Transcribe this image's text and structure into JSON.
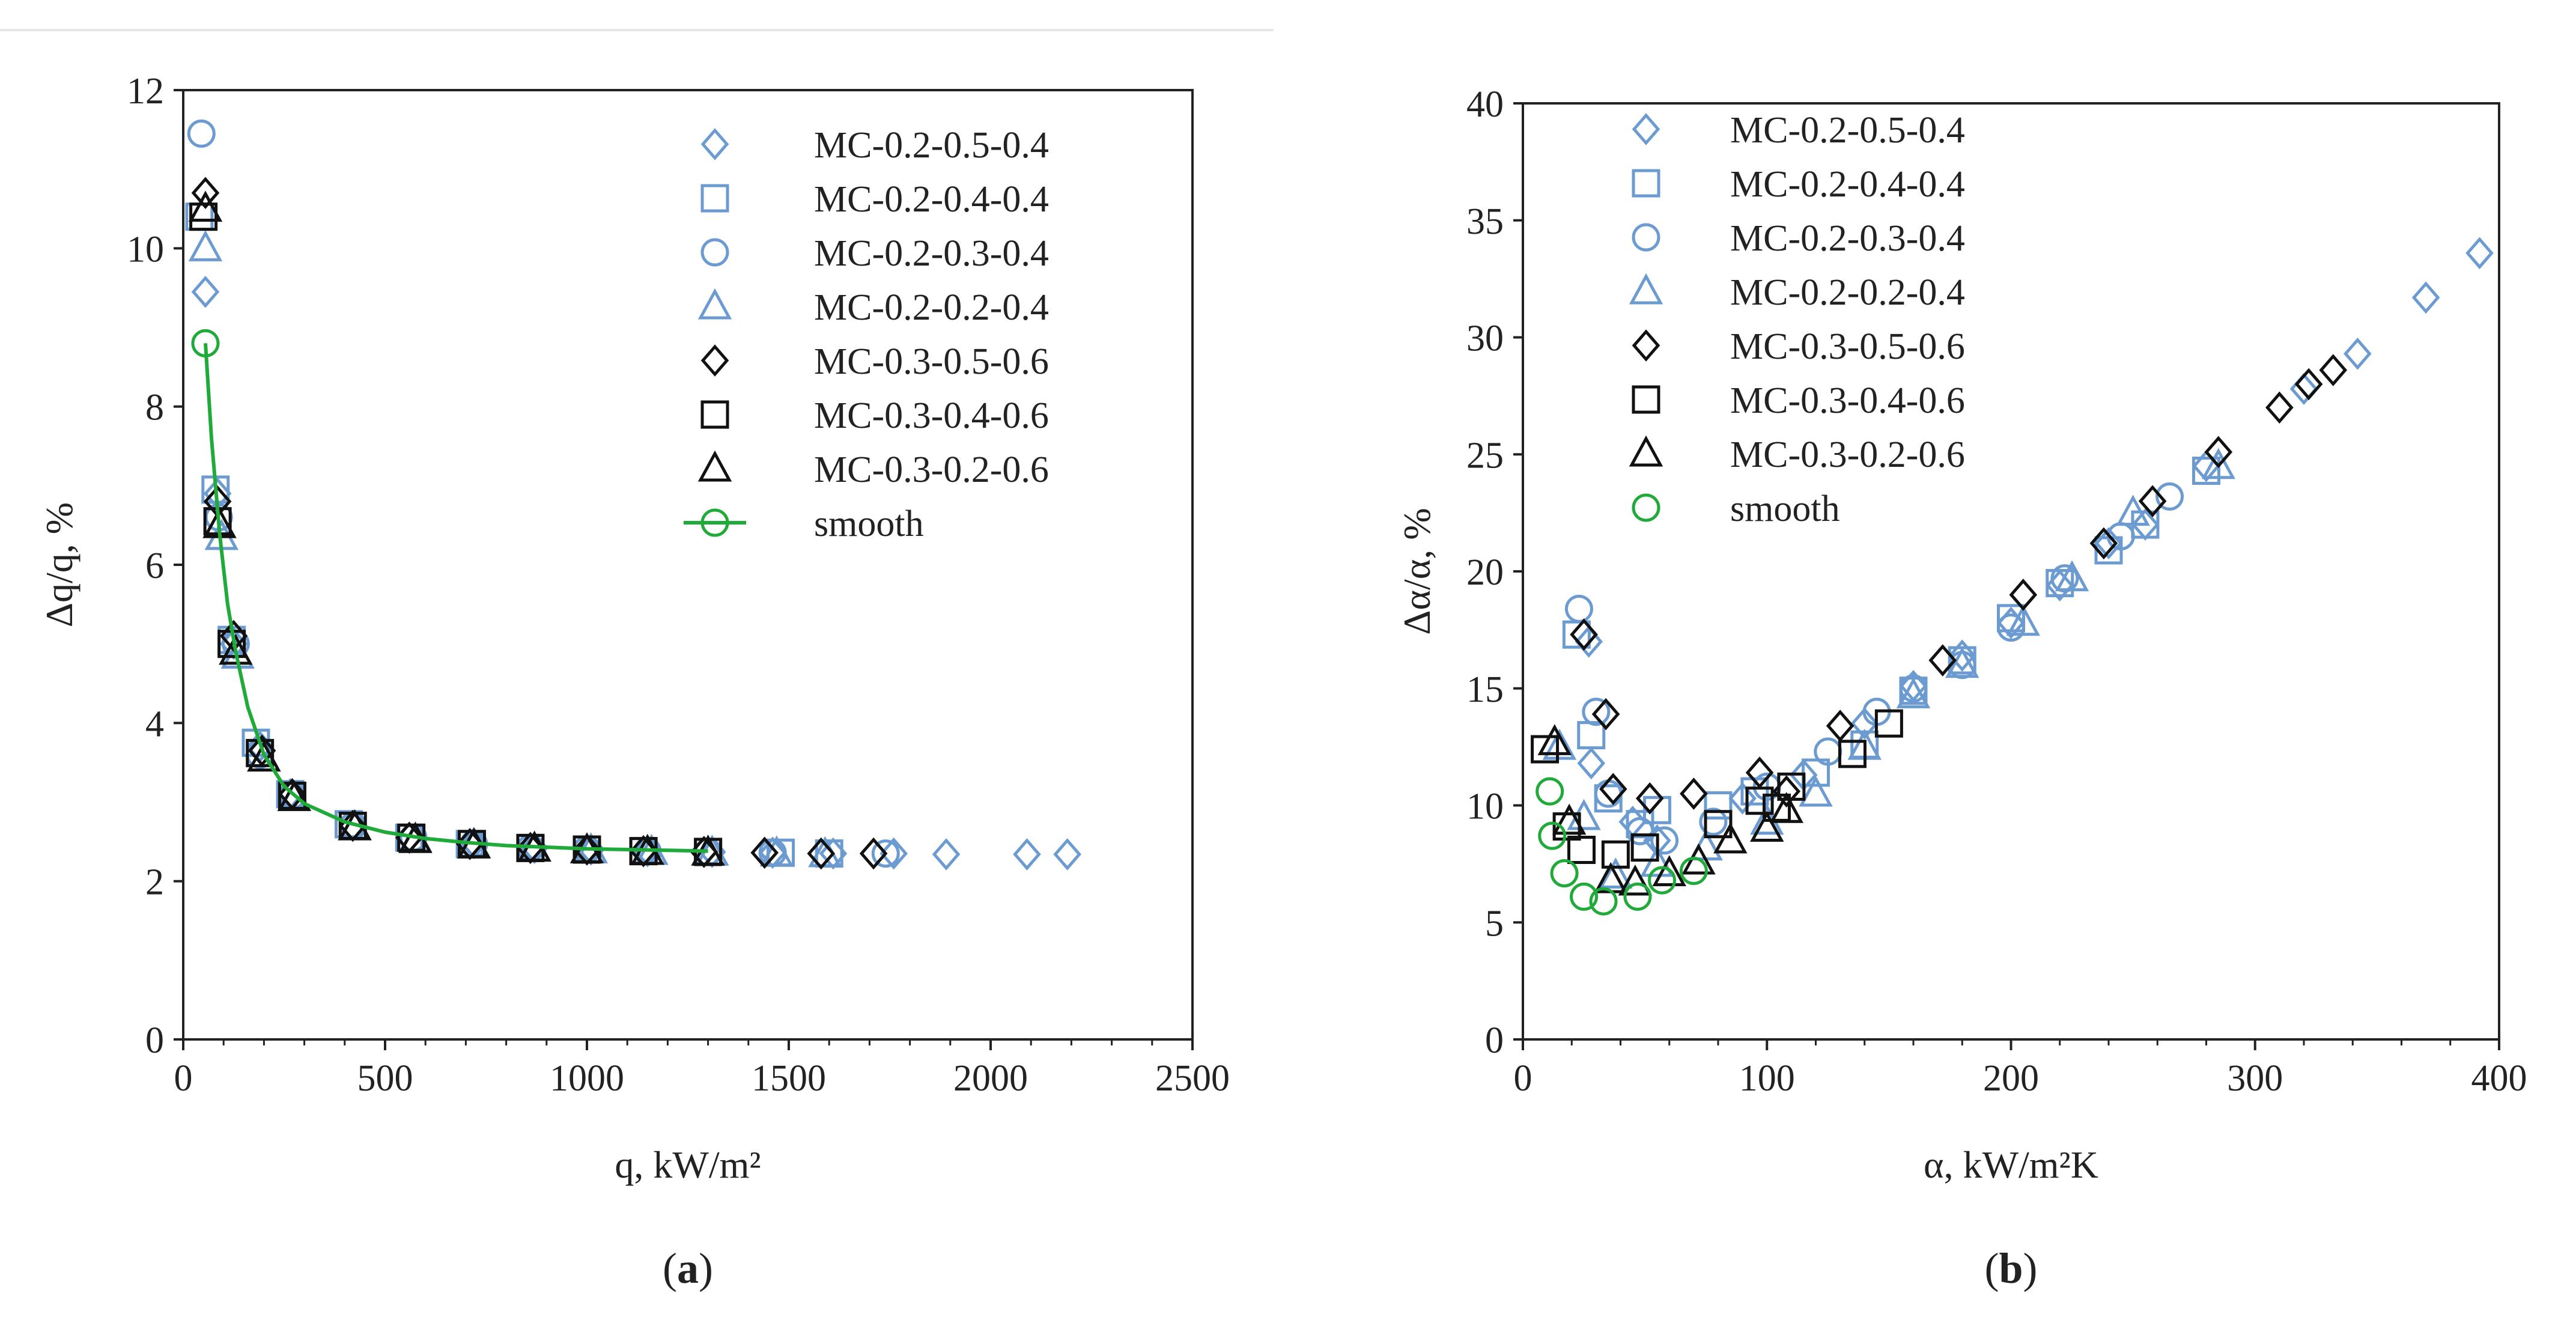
{
  "colors": {
    "blue": "#6b9bd1",
    "black": "#111111",
    "green": "#1faa3a",
    "axis": "#222222"
  },
  "chart_data": [
    {
      "id": "a",
      "type": "scatter",
      "caption": "(a)",
      "caption_letter": "a",
      "xlabel": "q, kW/m²",
      "ylabel": "Δq/q, %",
      "xlim": [
        0,
        2500
      ],
      "ylim": [
        0,
        12
      ],
      "xticks": [
        0,
        500,
        1000,
        1500,
        2000,
        2500
      ],
      "yticks": [
        0,
        2,
        4,
        6,
        8,
        10,
        12
      ],
      "legend_position": "top-right",
      "series": [
        {
          "name": "MC-0.2-0.5-0.4",
          "marker": "diamond",
          "color": "blue",
          "points": [
            [
              55,
              9.45
            ],
            [
              85,
              6.9
            ],
            [
              125,
              5.0
            ],
            [
              190,
              3.7
            ],
            [
              265,
              3.1
            ],
            [
              420,
              2.7
            ],
            [
              560,
              2.55
            ],
            [
              720,
              2.48
            ],
            [
              870,
              2.42
            ],
            [
              1010,
              2.4
            ],
            [
              1150,
              2.38
            ],
            [
              1310,
              2.37
            ],
            [
              1460,
              2.36
            ],
            [
              1610,
              2.35
            ],
            [
              1760,
              2.35
            ],
            [
              1890,
              2.34
            ],
            [
              2090,
              2.34
            ],
            [
              2190,
              2.34
            ]
          ]
        },
        {
          "name": "MC-0.2-0.4-0.4",
          "marker": "square",
          "color": "blue",
          "points": [
            [
              40,
              10.4
            ],
            [
              80,
              6.95
            ],
            [
              120,
              5.05
            ],
            [
              180,
              3.75
            ],
            [
              265,
              3.1
            ],
            [
              410,
              2.72
            ],
            [
              560,
              2.55
            ],
            [
              710,
              2.47
            ],
            [
              860,
              2.42
            ],
            [
              1000,
              2.4
            ],
            [
              1140,
              2.38
            ],
            [
              1300,
              2.37
            ],
            [
              1480,
              2.36
            ],
            [
              1600,
              2.35
            ]
          ]
        },
        {
          "name": "MC-0.2-0.3-0.4",
          "marker": "circle",
          "color": "blue",
          "points": [
            [
              45,
              11.45
            ],
            [
              88,
              6.6
            ],
            [
              130,
              5.0
            ],
            [
              190,
              3.6
            ],
            [
              270,
              3.08
            ],
            [
              420,
              2.7
            ],
            [
              570,
              2.55
            ],
            [
              720,
              2.47
            ],
            [
              860,
              2.42
            ],
            [
              1000,
              2.4
            ],
            [
              1150,
              2.38
            ],
            [
              1300,
              2.37
            ],
            [
              1460,
              2.36
            ],
            [
              1740,
              2.35
            ]
          ]
        },
        {
          "name": "MC-0.2-0.2-0.4",
          "marker": "triangle",
          "color": "blue",
          "points": [
            [
              55,
              10.0
            ],
            [
              95,
              6.35
            ],
            [
              135,
              4.85
            ],
            [
              200,
              3.55
            ],
            [
              275,
              3.05
            ],
            [
              425,
              2.68
            ],
            [
              575,
              2.53
            ],
            [
              720,
              2.46
            ],
            [
              870,
              2.41
            ],
            [
              1010,
              2.39
            ],
            [
              1160,
              2.37
            ],
            [
              1310,
              2.36
            ],
            [
              1470,
              2.35
            ],
            [
              1590,
              2.34
            ]
          ]
        },
        {
          "name": "MC-0.3-0.5-0.6",
          "marker": "diamond",
          "color": "black",
          "points": [
            [
              55,
              10.7
            ],
            [
              85,
              6.8
            ],
            [
              125,
              5.1
            ],
            [
              195,
              3.65
            ],
            [
              270,
              3.1
            ],
            [
              420,
              2.7
            ],
            [
              560,
              2.55
            ],
            [
              710,
              2.47
            ],
            [
              860,
              2.42
            ],
            [
              1000,
              2.4
            ],
            [
              1140,
              2.38
            ],
            [
              1290,
              2.37
            ],
            [
              1440,
              2.36
            ],
            [
              1580,
              2.35
            ],
            [
              1710,
              2.35
            ]
          ]
        },
        {
          "name": "MC-0.3-0.4-0.6",
          "marker": "square",
          "color": "black",
          "points": [
            [
              50,
              10.4
            ],
            [
              85,
              6.55
            ],
            [
              120,
              5.0
            ],
            [
              190,
              3.62
            ],
            [
              270,
              3.08
            ],
            [
              420,
              2.7
            ],
            [
              565,
              2.55
            ],
            [
              715,
              2.47
            ],
            [
              860,
              2.42
            ],
            [
              1000,
              2.4
            ],
            [
              1140,
              2.38
            ],
            [
              1300,
              2.37
            ]
          ]
        },
        {
          "name": "MC-0.3-0.2-0.6",
          "marker": "triangle",
          "color": "black",
          "points": [
            [
              55,
              10.5
            ],
            [
              90,
              6.5
            ],
            [
              130,
              4.9
            ],
            [
              200,
              3.55
            ],
            [
              275,
              3.05
            ],
            [
              425,
              2.68
            ],
            [
              575,
              2.52
            ],
            [
              720,
              2.45
            ],
            [
              870,
              2.41
            ],
            [
              1000,
              2.39
            ],
            [
              1150,
              2.37
            ],
            [
              1300,
              2.36
            ]
          ]
        },
        {
          "name": "smooth",
          "marker": "circle",
          "color": "green",
          "line": true,
          "points": [
            [
              55,
              8.8
            ],
            [
              70,
              7.6
            ],
            [
              90,
              6.4
            ],
            [
              110,
              5.5
            ],
            [
              130,
              4.9
            ],
            [
              160,
              4.2
            ],
            [
              200,
              3.6
            ],
            [
              250,
              3.2
            ],
            [
              300,
              2.98
            ],
            [
              400,
              2.75
            ],
            [
              500,
              2.62
            ],
            [
              600,
              2.54
            ],
            [
              700,
              2.49
            ],
            [
              800,
              2.45
            ],
            [
              900,
              2.43
            ],
            [
              1000,
              2.41
            ],
            [
              1100,
              2.4
            ],
            [
              1200,
              2.39
            ],
            [
              1300,
              2.38
            ]
          ],
          "marker_points": [
            [
              55,
              8.8
            ]
          ]
        }
      ]
    },
    {
      "id": "b",
      "type": "scatter",
      "caption": "(b)",
      "caption_letter": "b",
      "xlabel": "α, kW/m²K",
      "ylabel": "Δα/α, %",
      "xlim": [
        0,
        400
      ],
      "ylim": [
        0,
        40
      ],
      "xticks": [
        0,
        100,
        200,
        300,
        400
      ],
      "yticks": [
        0,
        5,
        10,
        15,
        20,
        25,
        30,
        35,
        40
      ],
      "legend_position": "top-left",
      "series": [
        {
          "name": "MC-0.2-0.5-0.4",
          "marker": "diamond",
          "color": "blue",
          "points": [
            [
              27,
              17.0
            ],
            [
              28,
              11.8
            ],
            [
              45,
              9.3
            ],
            [
              55,
              8.5
            ],
            [
              90,
              10.3
            ],
            [
              115,
              11.3
            ],
            [
              140,
              13.5
            ],
            [
              160,
              15.1
            ],
            [
              180,
              16.4
            ],
            [
              200,
              17.8
            ],
            [
              220,
              19.4
            ],
            [
              240,
              21.2
            ],
            [
              255,
              22.0
            ],
            [
              280,
              24.5
            ],
            [
              320,
              27.8
            ],
            [
              342,
              29.3
            ],
            [
              370,
              31.7
            ],
            [
              392,
              33.6
            ]
          ]
        },
        {
          "name": "MC-0.2-0.4-0.4",
          "marker": "square",
          "color": "blue",
          "points": [
            [
              22,
              17.3
            ],
            [
              28,
              13.0
            ],
            [
              35,
              10.3
            ],
            [
              48,
              9.2
            ],
            [
              55,
              9.8
            ],
            [
              80,
              10.0
            ],
            [
              95,
              10.6
            ],
            [
              120,
              11.4
            ],
            [
              140,
              12.6
            ],
            [
              160,
              14.9
            ],
            [
              180,
              16.2
            ],
            [
              200,
              18.0
            ],
            [
              220,
              19.5
            ],
            [
              240,
              20.9
            ],
            [
              255,
              22.0
            ],
            [
              280,
              24.3
            ]
          ]
        },
        {
          "name": "MC-0.2-0.3-0.4",
          "marker": "circle",
          "color": "blue",
          "points": [
            [
              23,
              18.4
            ],
            [
              30,
              14.0
            ],
            [
              35,
              10.5
            ],
            [
              48,
              8.9
            ],
            [
              58,
              8.5
            ],
            [
              78,
              9.3
            ],
            [
              100,
              10.8
            ],
            [
              125,
              12.3
            ],
            [
              145,
              14.0
            ],
            [
              160,
              15.0
            ],
            [
              180,
              16.0
            ],
            [
              200,
              17.6
            ],
            [
              222,
              19.7
            ],
            [
              245,
              21.5
            ],
            [
              265,
              23.2
            ]
          ]
        },
        {
          "name": "MC-0.2-0.2-0.4",
          "marker": "triangle",
          "color": "blue",
          "points": [
            [
              15,
              12.5
            ],
            [
              25,
              9.5
            ],
            [
              38,
              7.0
            ],
            [
              55,
              7.5
            ],
            [
              75,
              8.2
            ],
            [
              100,
              9.3
            ],
            [
              120,
              10.5
            ],
            [
              140,
              12.5
            ],
            [
              160,
              14.7
            ],
            [
              180,
              16.0
            ],
            [
              205,
              17.8
            ],
            [
              225,
              19.7
            ],
            [
              250,
              22.5
            ],
            [
              285,
              24.5
            ]
          ]
        },
        {
          "name": "MC-0.3-0.5-0.6",
          "marker": "diamond",
          "color": "black",
          "points": [
            [
              25,
              17.3
            ],
            [
              34,
              13.9
            ],
            [
              37,
              10.7
            ],
            [
              52,
              10.3
            ],
            [
              70,
              10.5
            ],
            [
              97,
              11.4
            ],
            [
              108,
              10.6
            ],
            [
              130,
              13.4
            ],
            [
              172,
              16.2
            ],
            [
              205,
              19.0
            ],
            [
              238,
              21.2
            ],
            [
              258,
              23.0
            ],
            [
              285,
              25.1
            ],
            [
              310,
              27.0
            ],
            [
              322,
              28.0
            ],
            [
              332,
              28.6
            ]
          ]
        },
        {
          "name": "MC-0.3-0.4-0.6",
          "marker": "square",
          "color": "black",
          "points": [
            [
              9,
              12.4
            ],
            [
              18,
              9.1
            ],
            [
              24,
              8.1
            ],
            [
              38,
              7.9
            ],
            [
              50,
              8.2
            ],
            [
              80,
              9.2
            ],
            [
              97,
              10.2
            ],
            [
              104,
              9.9
            ],
            [
              110,
              10.8
            ],
            [
              135,
              12.2
            ],
            [
              150,
              13.5
            ]
          ]
        },
        {
          "name": "MC-0.3-0.2-0.6",
          "marker": "triangle",
          "color": "black",
          "points": [
            [
              13,
              12.7
            ],
            [
              19,
              9.3
            ],
            [
              36,
              6.8
            ],
            [
              46,
              6.7
            ],
            [
              60,
              7.1
            ],
            [
              72,
              7.6
            ],
            [
              85,
              8.5
            ],
            [
              100,
              9.0
            ],
            [
              108,
              9.8
            ]
          ]
        },
        {
          "name": "smooth",
          "marker": "circle",
          "color": "green",
          "line": false,
          "points": [
            [
              11,
              10.6
            ],
            [
              12,
              8.7
            ],
            [
              17,
              7.1
            ],
            [
              25,
              6.1
            ],
            [
              33,
              5.9
            ],
            [
              47,
              6.1
            ],
            [
              57,
              6.8
            ],
            [
              70,
              7.2
            ]
          ]
        }
      ]
    }
  ]
}
